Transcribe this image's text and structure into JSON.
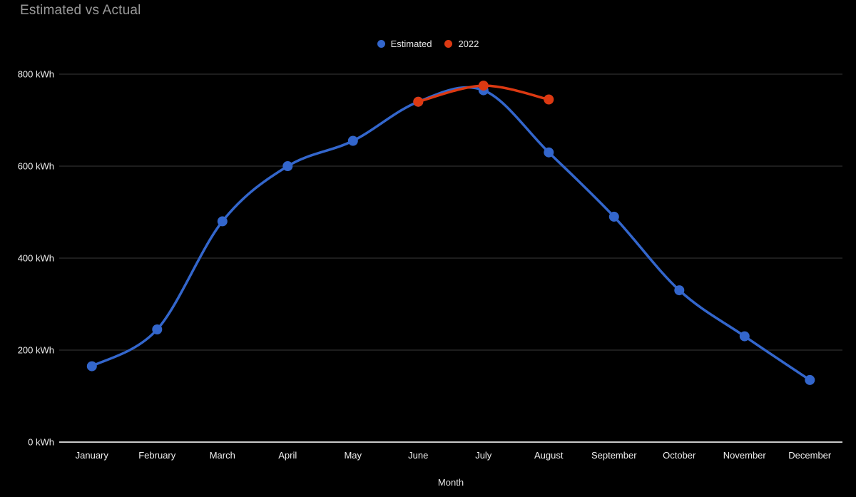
{
  "page": {
    "background": "#000000"
  },
  "header": {
    "title": "Estimated vs Actual"
  },
  "legend": {
    "items": [
      {
        "label": "Estimated",
        "color": "#3366cc"
      },
      {
        "label": "2022",
        "color": "#dc3912"
      }
    ]
  },
  "chart_data": {
    "type": "line",
    "title": "Estimated vs Actual",
    "xlabel": "Month",
    "ylabel": "",
    "y_unit": "kWh",
    "categories": [
      "January",
      "February",
      "March",
      "April",
      "May",
      "June",
      "July",
      "August",
      "September",
      "October",
      "November",
      "December"
    ],
    "y_ticks": [
      {
        "value": 0,
        "label": "0 kWh"
      },
      {
        "value": 200,
        "label": "200 kWh"
      },
      {
        "value": 400,
        "label": "400 kWh"
      },
      {
        "value": 600,
        "label": "600 kWh"
      },
      {
        "value": 800,
        "label": "800 kWh"
      }
    ],
    "ylim": [
      0,
      800
    ],
    "grid": true,
    "line_style": "smooth",
    "legend_position": "top-center",
    "series": [
      {
        "name": "Estimated",
        "color": "#3366cc",
        "values": [
          165,
          245,
          480,
          600,
          655,
          740,
          765,
          630,
          490,
          330,
          230,
          135
        ]
      },
      {
        "name": "2022",
        "color": "#dc3912",
        "values": [
          null,
          null,
          null,
          null,
          null,
          740,
          775,
          745,
          null,
          null,
          null,
          null
        ]
      }
    ],
    "styles": {
      "background": "#000000",
      "title_color": "#9a9a9a",
      "axis_text_color": "#efefef",
      "gridline_color": "#3a3a3a",
      "baseline_color": "#c8c8c8"
    }
  }
}
